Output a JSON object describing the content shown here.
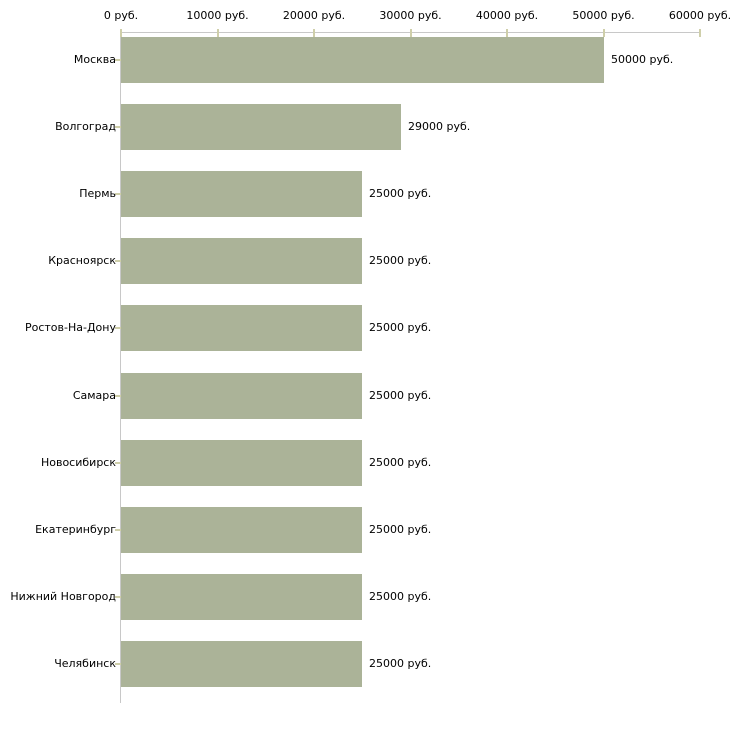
{
  "chart_data": {
    "type": "bar",
    "orientation": "horizontal",
    "title": "",
    "xlabel": "",
    "ylabel": "",
    "categories": [
      "Москва",
      "Волгоград",
      "Пермь",
      "Красноярск",
      "Ростов-На-Дону",
      "Самара",
      "Новосибирск",
      "Екатеринбург",
      "Нижний Новгород",
      "Челябинск"
    ],
    "values": [
      50000,
      29000,
      25000,
      25000,
      25000,
      25000,
      25000,
      25000,
      25000,
      25000
    ],
    "value_labels": [
      "50000 руб.",
      "29000 руб.",
      "25000 руб.",
      "25000 руб.",
      "25000 руб.",
      "25000 руб.",
      "25000 руб.",
      "25000 руб.",
      "25000 руб.",
      "25000 руб."
    ],
    "x_ticks": [
      0,
      10000,
      20000,
      30000,
      40000,
      50000,
      60000
    ],
    "x_tick_labels": [
      "0 руб.",
      "10000 руб.",
      "20000 руб.",
      "30000 руб.",
      "40000 руб.",
      "50000 руб.",
      "60000 руб."
    ],
    "xlim": [
      0,
      60000
    ],
    "grid": false,
    "legend": false,
    "tick_labels_position": "top",
    "bar_color": "#abb398",
    "axis_color": "#c8c8c8",
    "tick_color": "#cfcfaa",
    "text_color": "#000000",
    "background": "#ffffff"
  }
}
